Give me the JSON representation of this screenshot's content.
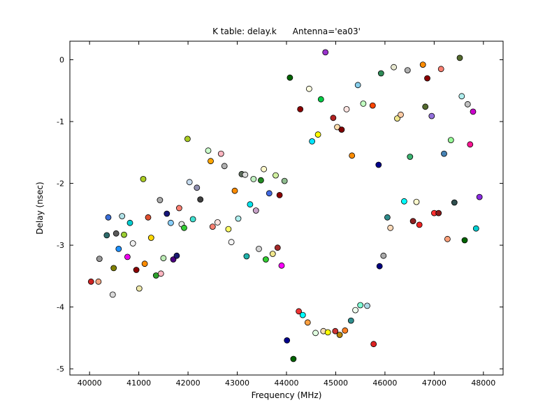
{
  "chart_data": {
    "type": "scatter",
    "title": "K table: delay.k      Antenna='ea03'",
    "xlabel": "Frequency (MHz)",
    "ylabel": "Delay (nsec)",
    "xlim": [
      39600,
      48400
    ],
    "ylim": [
      -5.1,
      0.3
    ],
    "xticks": [
      40000,
      41000,
      42000,
      43000,
      44000,
      45000,
      46000,
      47000,
      48000
    ],
    "xtick_labels": [
      "40000",
      "41000",
      "42000",
      "43000",
      "44000",
      "45000",
      "46000",
      "47000",
      "48000"
    ],
    "yticks": [
      0,
      -1,
      -2,
      -3,
      -4,
      -5
    ],
    "ytick_labels": [
      "0",
      "-1",
      "-2",
      "-3",
      "-4",
      "-5"
    ],
    "grid": false,
    "legend": null,
    "marker": {
      "radius": 4,
      "edge_color": "#000000",
      "edge_width": 0.8
    },
    "points": [
      {
        "x": 40030,
        "y": -3.59,
        "c": "#cc2222"
      },
      {
        "x": 40180,
        "y": -3.59,
        "c": "#f4a582"
      },
      {
        "x": 40200,
        "y": -3.22,
        "c": "#999999"
      },
      {
        "x": 40350,
        "y": -2.84,
        "c": "#2e6b6b"
      },
      {
        "x": 40380,
        "y": -2.55,
        "c": "#3a6fd8"
      },
      {
        "x": 40470,
        "y": -3.8,
        "c": "#d9d9d9"
      },
      {
        "x": 40490,
        "y": -3.37,
        "c": "#808000"
      },
      {
        "x": 40540,
        "y": -2.81,
        "c": "#5a5a5a"
      },
      {
        "x": 40590,
        "y": -3.06,
        "c": "#1e90ff"
      },
      {
        "x": 40660,
        "y": -2.53,
        "c": "#b0e0e6"
      },
      {
        "x": 40700,
        "y": -2.83,
        "c": "#9acd32"
      },
      {
        "x": 40770,
        "y": -3.19,
        "c": "#ee00ee"
      },
      {
        "x": 40820,
        "y": -2.64,
        "c": "#00ced1"
      },
      {
        "x": 40880,
        "y": -2.97,
        "c": "#f0f0f0"
      },
      {
        "x": 40950,
        "y": -3.4,
        "c": "#8b0000"
      },
      {
        "x": 41010,
        "y": -3.7,
        "c": "#eee8aa"
      },
      {
        "x": 41090,
        "y": -1.93,
        "c": "#aacc22"
      },
      {
        "x": 41120,
        "y": -3.3,
        "c": "#ff8c00"
      },
      {
        "x": 41190,
        "y": -2.55,
        "c": "#e05030"
      },
      {
        "x": 41250,
        "y": -2.88,
        "c": "#ffd700"
      },
      {
        "x": 41350,
        "y": -3.49,
        "c": "#2ca02c"
      },
      {
        "x": 41430,
        "y": -2.27,
        "c": "#aaaaaa"
      },
      {
        "x": 41450,
        "y": -3.46,
        "c": "#ffb6c1"
      },
      {
        "x": 41500,
        "y": -3.21,
        "c": "#bdecb6"
      },
      {
        "x": 41570,
        "y": -2.49,
        "c": "#16167a"
      },
      {
        "x": 41650,
        "y": -2.64,
        "c": "#87cefa"
      },
      {
        "x": 41700,
        "y": -3.23,
        "c": "#4b0082"
      },
      {
        "x": 41770,
        "y": -3.17,
        "c": "#191970"
      },
      {
        "x": 41820,
        "y": -2.4,
        "c": "#fa8072"
      },
      {
        "x": 41870,
        "y": -2.66,
        "c": "#e8e8e8"
      },
      {
        "x": 41920,
        "y": -2.72,
        "c": "#33cc33"
      },
      {
        "x": 41990,
        "y": -1.28,
        "c": "#aacc22"
      },
      {
        "x": 42030,
        "y": -1.98,
        "c": "#c6dbef"
      },
      {
        "x": 42100,
        "y": -2.58,
        "c": "#40e0d0"
      },
      {
        "x": 42180,
        "y": -2.07,
        "c": "#9090b0"
      },
      {
        "x": 42250,
        "y": -2.26,
        "c": "#404040"
      },
      {
        "x": 42410,
        "y": -1.47,
        "c": "#ccffcc"
      },
      {
        "x": 42460,
        "y": -1.64,
        "c": "#ffa500"
      },
      {
        "x": 42500,
        "y": -2.7,
        "c": "#fa8072"
      },
      {
        "x": 42600,
        "y": -2.63,
        "c": "#ffe4e1"
      },
      {
        "x": 42670,
        "y": -1.52,
        "c": "#ffb6c1"
      },
      {
        "x": 42740,
        "y": -1.72,
        "c": "#b0b0b0"
      },
      {
        "x": 42820,
        "y": -2.74,
        "c": "#ffff66"
      },
      {
        "x": 42880,
        "y": -2.95,
        "c": "#f5f5f5"
      },
      {
        "x": 42950,
        "y": -2.12,
        "c": "#ff8c00"
      },
      {
        "x": 43020,
        "y": -2.57,
        "c": "#afeeee"
      },
      {
        "x": 43090,
        "y": -1.85,
        "c": "#5f6f5f"
      },
      {
        "x": 43160,
        "y": -1.86,
        "c": "#dcdcdc"
      },
      {
        "x": 43190,
        "y": -3.18,
        "c": "#20b2aa"
      },
      {
        "x": 43260,
        "y": -2.34,
        "c": "#00e5ee"
      },
      {
        "x": 43330,
        "y": -1.93,
        "c": "#c0f0c0"
      },
      {
        "x": 43380,
        "y": -2.44,
        "c": "#c8a2c8"
      },
      {
        "x": 43440,
        "y": -3.06,
        "c": "#d3d3d3"
      },
      {
        "x": 43480,
        "y": -1.95,
        "c": "#228b22"
      },
      {
        "x": 43540,
        "y": -1.77,
        "c": "#fffacd"
      },
      {
        "x": 43580,
        "y": -3.23,
        "c": "#32cd32"
      },
      {
        "x": 43650,
        "y": -2.16,
        "c": "#4169e1"
      },
      {
        "x": 43720,
        "y": -3.14,
        "c": "#f0e68c"
      },
      {
        "x": 43780,
        "y": -1.87,
        "c": "#d0f0a0"
      },
      {
        "x": 43820,
        "y": -3.04,
        "c": "#a52a2a"
      },
      {
        "x": 43860,
        "y": -2.19,
        "c": "#8b0000"
      },
      {
        "x": 43900,
        "y": -3.33,
        "c": "#ff00ff"
      },
      {
        "x": 43960,
        "y": -1.96,
        "c": "#8fbc8f"
      },
      {
        "x": 44010,
        "y": -4.54,
        "c": "#00008b"
      },
      {
        "x": 44140,
        "y": -4.84,
        "c": "#006400"
      },
      {
        "x": 44250,
        "y": -4.07,
        "c": "#ee3333"
      },
      {
        "x": 44330,
        "y": -4.13,
        "c": "#00ffff"
      },
      {
        "x": 44430,
        "y": -4.25,
        "c": "#ffa040"
      },
      {
        "x": 44590,
        "y": -4.42,
        "c": "#e0ffe0"
      },
      {
        "x": 44750,
        "y": -4.39,
        "c": "#f5deb3"
      },
      {
        "x": 44840,
        "y": -4.41,
        "c": "#ffff00"
      },
      {
        "x": 44990,
        "y": -4.39,
        "c": "#cc3333"
      },
      {
        "x": 45080,
        "y": -4.45,
        "c": "#b8860b"
      },
      {
        "x": 45190,
        "y": -4.38,
        "c": "#ff7f24"
      },
      {
        "x": 45310,
        "y": -4.22,
        "c": "#2f8f8f"
      },
      {
        "x": 45400,
        "y": -4.05,
        "c": "#f0fff0"
      },
      {
        "x": 45500,
        "y": -3.97,
        "c": "#7fffd4"
      },
      {
        "x": 45640,
        "y": -3.98,
        "c": "#add8e6"
      },
      {
        "x": 45770,
        "y": -4.6,
        "c": "#dd2222"
      },
      {
        "x": 45890,
        "y": -3.34,
        "c": "#000080"
      },
      {
        "x": 45970,
        "y": -3.17,
        "c": "#a9a9a9"
      },
      {
        "x": 46050,
        "y": -2.55,
        "c": "#2e8b8b"
      },
      {
        "x": 46110,
        "y": -2.72,
        "c": "#ffdab9"
      },
      {
        "x": 44070,
        "y": -0.29,
        "c": "#006400"
      },
      {
        "x": 44280,
        "y": -0.8,
        "c": "#8b0000"
      },
      {
        "x": 44460,
        "y": -0.47,
        "c": "#ffffe0"
      },
      {
        "x": 44520,
        "y": -1.32,
        "c": "#00e5ff"
      },
      {
        "x": 44640,
        "y": -1.21,
        "c": "#ffff00"
      },
      {
        "x": 44700,
        "y": -0.64,
        "c": "#00cc44"
      },
      {
        "x": 44790,
        "y": 0.12,
        "c": "#9932cc"
      },
      {
        "x": 44950,
        "y": -0.94,
        "c": "#b22222"
      },
      {
        "x": 45030,
        "y": -1.09,
        "c": "#ffdead"
      },
      {
        "x": 45120,
        "y": -1.13,
        "c": "#800000"
      },
      {
        "x": 45220,
        "y": -0.8,
        "c": "#ffe4e1"
      },
      {
        "x": 45330,
        "y": -1.55,
        "c": "#ff8c00"
      },
      {
        "x": 45450,
        "y": -0.41,
        "c": "#87ceeb"
      },
      {
        "x": 45560,
        "y": -0.71,
        "c": "#c1ffc1"
      },
      {
        "x": 45750,
        "y": -0.74,
        "c": "#ff4500"
      },
      {
        "x": 45870,
        "y": -1.7,
        "c": "#00008b"
      },
      {
        "x": 45920,
        "y": -0.22,
        "c": "#2e8b57"
      },
      {
        "x": 46180,
        "y": -0.12,
        "c": "#e8e8d0"
      },
      {
        "x": 46250,
        "y": -0.95,
        "c": "#f0e68c"
      },
      {
        "x": 46320,
        "y": -0.89,
        "c": "#ffcba4"
      },
      {
        "x": 46390,
        "y": -2.29,
        "c": "#00ffff"
      },
      {
        "x": 46460,
        "y": -0.17,
        "c": "#b0b0b0"
      },
      {
        "x": 46510,
        "y": -1.57,
        "c": "#3cb371"
      },
      {
        "x": 46570,
        "y": -2.61,
        "c": "#8b2222"
      },
      {
        "x": 46640,
        "y": -2.3,
        "c": "#fffacd"
      },
      {
        "x": 46700,
        "y": -2.67,
        "c": "#ee2222"
      },
      {
        "x": 46770,
        "y": -0.08,
        "c": "#ff8c00"
      },
      {
        "x": 46820,
        "y": -0.76,
        "c": "#556b2f"
      },
      {
        "x": 46860,
        "y": -0.3,
        "c": "#8b0000"
      },
      {
        "x": 46950,
        "y": -0.91,
        "c": "#9370db"
      },
      {
        "x": 47000,
        "y": -2.48,
        "c": "#ff3030"
      },
      {
        "x": 47090,
        "y": -2.48,
        "c": "#8b1a1a"
      },
      {
        "x": 47140,
        "y": -0.15,
        "c": "#fa8072"
      },
      {
        "x": 47200,
        "y": -1.52,
        "c": "#4682b4"
      },
      {
        "x": 47270,
        "y": -2.9,
        "c": "#ffa07a"
      },
      {
        "x": 47340,
        "y": -1.3,
        "c": "#98fb98"
      },
      {
        "x": 47410,
        "y": -2.31,
        "c": "#2f4f4f"
      },
      {
        "x": 47520,
        "y": 0.03,
        "c": "#556b2f"
      },
      {
        "x": 47560,
        "y": -0.59,
        "c": "#afeeee"
      },
      {
        "x": 47620,
        "y": -2.92,
        "c": "#006400"
      },
      {
        "x": 47680,
        "y": -0.72,
        "c": "#c0c0c0"
      },
      {
        "x": 47730,
        "y": -1.37,
        "c": "#ff1493"
      },
      {
        "x": 47790,
        "y": -0.84,
        "c": "#cc00cc"
      },
      {
        "x": 47850,
        "y": -2.73,
        "c": "#00ced1"
      },
      {
        "x": 47920,
        "y": -2.22,
        "c": "#8a2be2"
      }
    ]
  }
}
